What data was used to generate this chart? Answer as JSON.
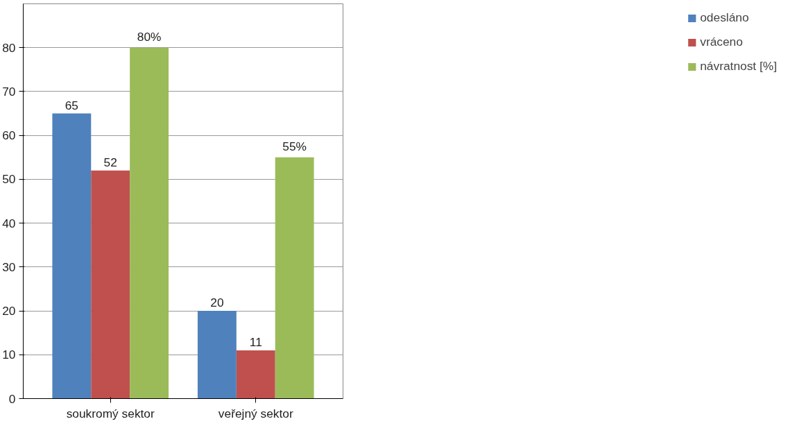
{
  "chart_data": {
    "type": "bar",
    "categories": [
      "soukromý sektor",
      "veřejný sektor"
    ],
    "series": [
      {
        "name": "odesláno",
        "color": "#4f81bd",
        "values": [
          65,
          20
        ],
        "value_labels": [
          "65",
          "20"
        ]
      },
      {
        "name": "vráceno",
        "color": "#c0504d",
        "values": [
          52,
          11
        ],
        "value_labels": [
          "52",
          "11"
        ]
      },
      {
        "name": "návratnost [%]",
        "color": "#9bbb59",
        "values": [
          80,
          55
        ],
        "value_labels": [
          "80%",
          "55%"
        ]
      }
    ],
    "ylim": [
      0,
      90
    ],
    "yticks": [
      0,
      10,
      20,
      30,
      40,
      50,
      60,
      70,
      80
    ],
    "grid": "y",
    "legend": "right"
  }
}
